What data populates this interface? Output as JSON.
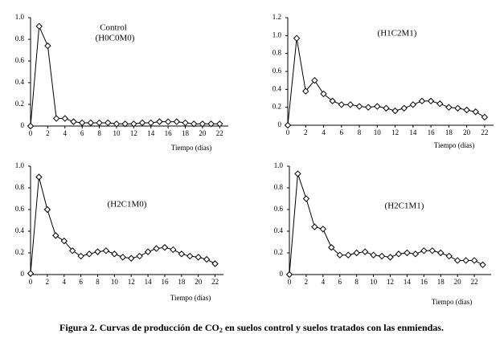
{
  "chart_data": [
    {
      "type": "line",
      "title": "Control",
      "subtitle": "(H0C0M0)",
      "x_label": "Tiempo (días)",
      "x": [
        0,
        1,
        2,
        3,
        4,
        5,
        6,
        7,
        8,
        9,
        10,
        11,
        12,
        13,
        14,
        15,
        16,
        17,
        18,
        19,
        20,
        21,
        22
      ],
      "values": [
        0,
        0.92,
        0.74,
        0.07,
        0.07,
        0.04,
        0.03,
        0.03,
        0.03,
        0.03,
        0.02,
        0.02,
        0.02,
        0.03,
        0.03,
        0.04,
        0.04,
        0.04,
        0.03,
        0.02,
        0.02,
        0.02,
        0.02
      ],
      "color": "#000000",
      "xlim": [
        0,
        23
      ],
      "ylim": [
        0,
        1
      ],
      "xticks": [
        0,
        2,
        4,
        6,
        8,
        10,
        12,
        14,
        16,
        18,
        20,
        22
      ],
      "yticks": [
        0,
        0.2,
        0.4,
        0.6,
        0.8,
        {
          "value": 1,
          "label": "1.0"
        }
      ]
    },
    {
      "type": "line",
      "title": "(H1C2M1)",
      "x_label": "Tiempo (días)",
      "x": [
        0,
        1,
        2,
        3,
        4,
        5,
        6,
        7,
        8,
        9,
        10,
        11,
        12,
        13,
        14,
        15,
        16,
        17,
        18,
        19,
        20,
        21,
        22
      ],
      "values": [
        0,
        0.97,
        0.38,
        0.5,
        0.35,
        0.27,
        0.23,
        0.23,
        0.21,
        0.2,
        0.21,
        0.19,
        0.16,
        0.19,
        0.23,
        0.27,
        0.27,
        0.24,
        0.2,
        0.19,
        0.17,
        0.15,
        0.09
      ],
      "color": "#000000",
      "xlim": [
        0,
        23
      ],
      "ylim": [
        0,
        1.2
      ],
      "xticks": [
        0,
        2,
        4,
        6,
        8,
        10,
        12,
        14,
        16,
        18,
        20,
        22
      ],
      "yticks": [
        0,
        0.2,
        0.4,
        0.6,
        0.8,
        {
          "value": 1,
          "label": "1.0"
        },
        1.2
      ]
    },
    {
      "type": "line",
      "title": "(H2C1M0)",
      "x_label": "Tiempo (días)",
      "x": [
        0,
        1,
        2,
        3,
        4,
        5,
        6,
        7,
        8,
        9,
        10,
        11,
        12,
        13,
        14,
        15,
        16,
        17,
        18,
        19,
        20,
        21,
        22
      ],
      "values": [
        0.01,
        0.9,
        0.6,
        0.36,
        0.31,
        0.22,
        0.17,
        0.19,
        0.21,
        0.22,
        0.19,
        0.16,
        0.15,
        0.17,
        0.21,
        0.24,
        0.25,
        0.23,
        0.19,
        0.17,
        0.16,
        0.14,
        0.1
      ],
      "color": "#000000",
      "xlim": [
        0,
        23
      ],
      "ylim": [
        0,
        1
      ],
      "xticks": [
        0,
        2,
        4,
        6,
        8,
        10,
        12,
        14,
        16,
        18,
        20,
        22
      ],
      "yticks": [
        0,
        0.2,
        0.4,
        0.6,
        0.8,
        {
          "value": 1,
          "label": "1.0"
        }
      ]
    },
    {
      "type": "line",
      "title": "(H2C1M1)",
      "x_label": "Tiempo (días)",
      "x": [
        0,
        1,
        2,
        3,
        4,
        5,
        6,
        7,
        8,
        9,
        10,
        11,
        12,
        13,
        14,
        15,
        16,
        17,
        18,
        19,
        20,
        21,
        22,
        23
      ],
      "values": [
        0,
        0.93,
        0.7,
        0.44,
        0.42,
        0.25,
        0.18,
        0.18,
        0.2,
        0.21,
        0.18,
        0.17,
        0.16,
        0.19,
        0.2,
        0.19,
        0.22,
        0.22,
        0.2,
        0.17,
        0.13,
        0.13,
        0.13,
        0.09
      ],
      "color": "#000000",
      "xlim": [
        0,
        24
      ],
      "ylim": [
        0,
        1
      ],
      "xticks": [
        0,
        2,
        4,
        6,
        8,
        10,
        12,
        14,
        16,
        18,
        20,
        22
      ],
      "yticks": [
        0,
        0.2,
        0.4,
        0.6,
        0.8,
        {
          "value": 1,
          "label": "1.0"
        }
      ]
    }
  ],
  "caption": {
    "before": "Figura 2. Curvas de producción de CO",
    "sub": "2",
    "after": " en suelos control y suelos tratados con las enmiendas."
  }
}
